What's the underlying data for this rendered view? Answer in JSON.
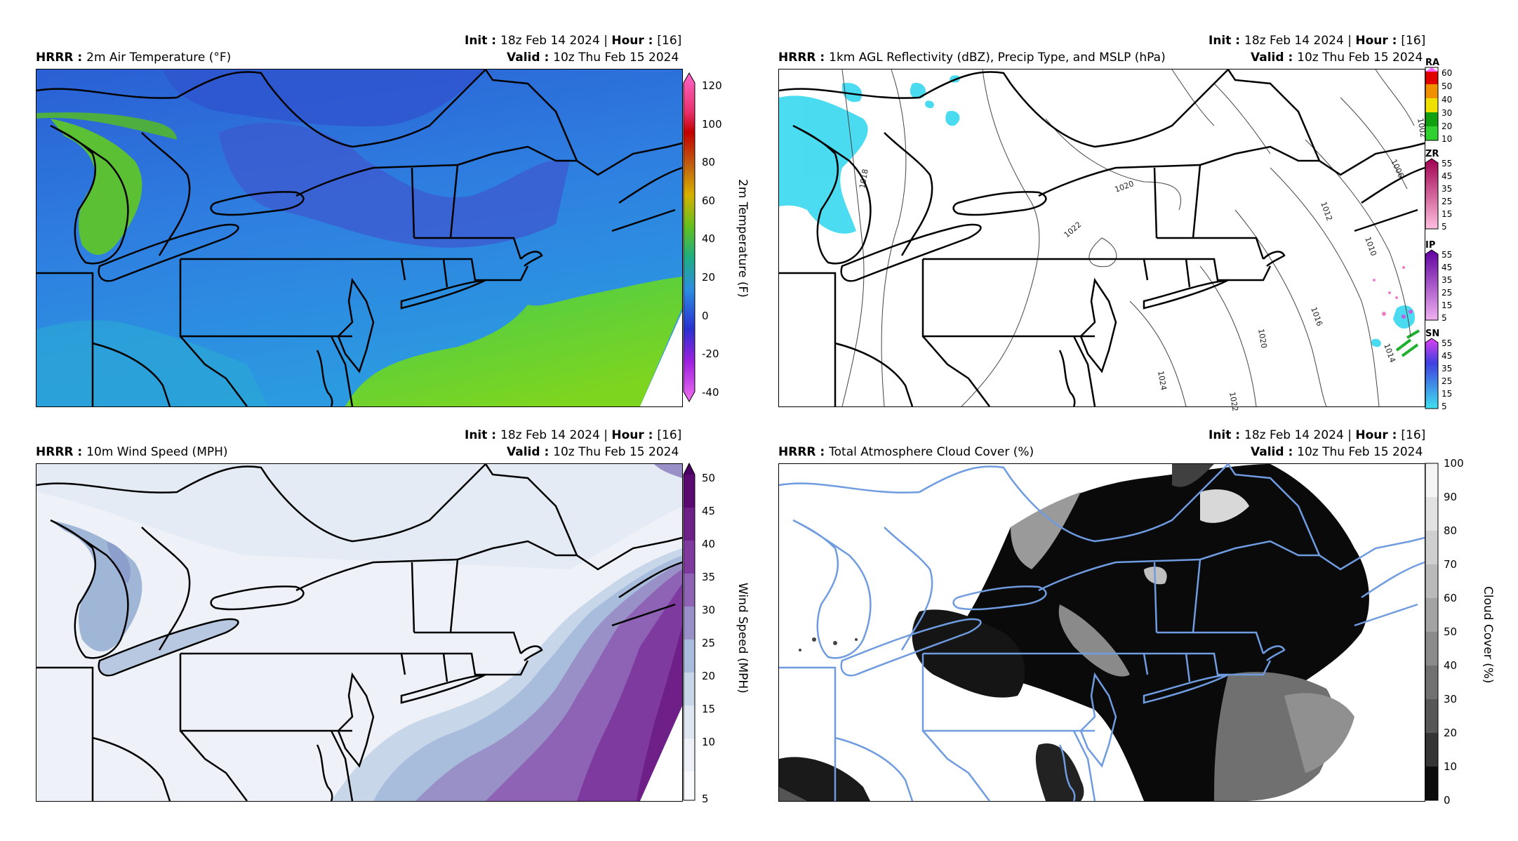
{
  "panels": [
    {
      "model": "HRRR",
      "product": "2m Air Temperature (°F)",
      "init_label": "Init",
      "init_value": "18z Feb 14 2024",
      "hour_label": "Hour",
      "hour_value": "[16]",
      "valid_label": "Valid",
      "valid_value": "10z Thu Feb 15 2024",
      "colorbar_label": "2m Temperature (F)",
      "colorbar_ticks": [
        "120",
        "100",
        "80",
        "60",
        "40",
        "20",
        "0",
        "-20",
        "-40"
      ],
      "colors": {
        "land": "#2d8fe0",
        "interior": "#2f6fd6",
        "ocean": "#6ccf2a",
        "lakes": "#5dbf2e"
      }
    },
    {
      "model": "HRRR",
      "product": "1km AGL Reflectivity (dBZ), Precip Type, and MSLP (hPa)",
      "init_label": "Init",
      "init_value": "18z Feb 14 2024",
      "hour_label": "Hour",
      "hour_value": "[16]",
      "valid_label": "Valid",
      "valid_value": "10z Thu Feb 15 2024",
      "isobar_labels": [
        "1018",
        "1020",
        "1022",
        "1024",
        "1022",
        "1020",
        "1016",
        "1014",
        "1010",
        "1012",
        "1006",
        "1002"
      ],
      "precip_types": [
        {
          "name": "RA",
          "ticks": [
            "60",
            "50",
            "40",
            "30",
            "20",
            "10"
          ]
        },
        {
          "name": "ZR",
          "ticks": [
            "55",
            "45",
            "35",
            "25",
            "15",
            "5"
          ]
        },
        {
          "name": "IP",
          "ticks": [
            "55",
            "45",
            "35",
            "25",
            "15",
            "5"
          ]
        },
        {
          "name": "SN",
          "ticks": [
            "55",
            "45",
            "35",
            "25",
            "15",
            "5"
          ]
        }
      ],
      "colors": {
        "snow": "#38d8f0"
      }
    },
    {
      "model": "HRRR",
      "product": "10m Wind Speed (MPH)",
      "init_label": "Init",
      "init_value": "18z Feb 14 2024",
      "hour_label": "Hour",
      "hour_value": "[16]",
      "valid_label": "Valid",
      "valid_value": "10z Thu Feb 15 2024",
      "colorbar_label": "Wind Speed (MPH)",
      "colorbar_ticks": [
        "50",
        "45",
        "40",
        "35",
        "30",
        "25",
        "20",
        "15",
        "10",
        "5"
      ]
    },
    {
      "model": "HRRR",
      "product": "Total Atmosphere Cloud Cover (%)",
      "init_label": "Init",
      "init_value": "18z Feb 14 2024",
      "hour_label": "Hour",
      "hour_value": "[16]",
      "valid_label": "Valid",
      "valid_value": "10z Thu Feb 15 2024",
      "colorbar_label": "Cloud Cover (%)",
      "colorbar_ticks": [
        "100",
        "90",
        "80",
        "70",
        "60",
        "50",
        "40",
        "30",
        "20",
        "10",
        "0"
      ],
      "colors": {
        "borders": "#6f9be0"
      }
    }
  ]
}
